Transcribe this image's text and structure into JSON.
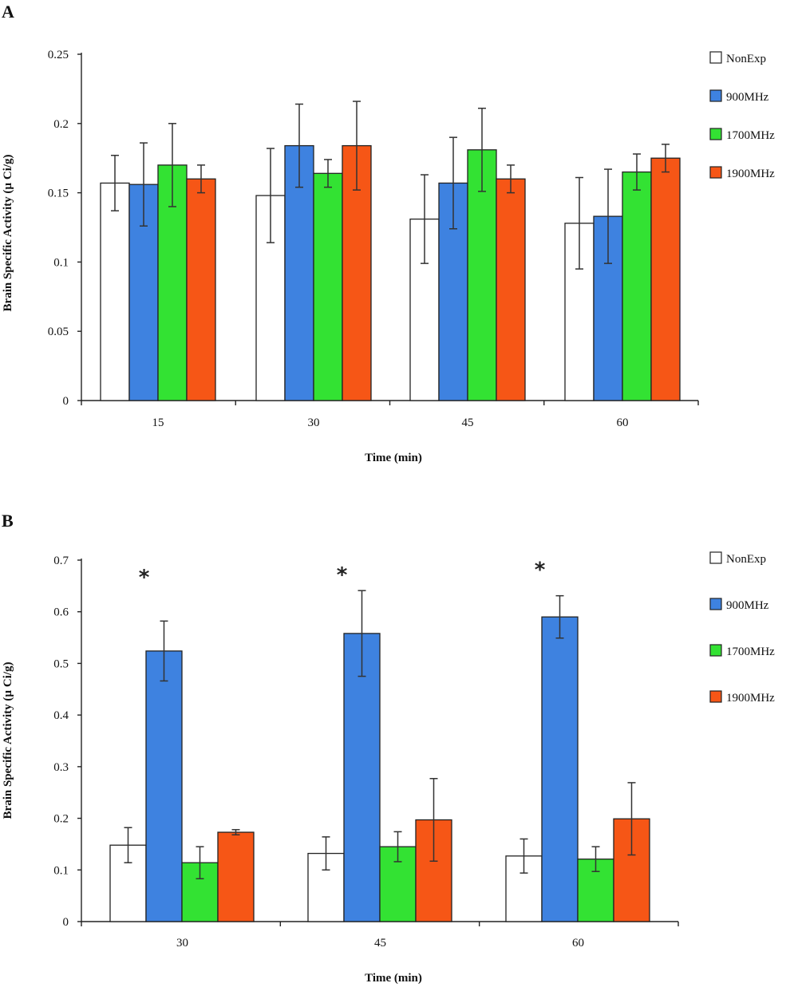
{
  "chart_data": [
    {
      "panel": "A",
      "type": "bar",
      "title": "",
      "xlabel": "Time (min)",
      "ylabel": "Brain Specific Activity (µ Ci/g)",
      "ylim": [
        0,
        0.25
      ],
      "yticks": [
        "0",
        "0.05",
        "0.1",
        "0.15",
        "0.2",
        "0.25"
      ],
      "categories": [
        "15",
        "30",
        "45",
        "60"
      ],
      "legend_position": "right",
      "grid": false,
      "series": [
        {
          "name": "NonExp",
          "color": "#ffffff",
          "values": [
            0.157,
            0.148,
            0.131,
            0.128
          ],
          "errors": [
            0.02,
            0.034,
            0.032,
            0.033
          ]
        },
        {
          "name": "900MHz",
          "color": "#3e82e0",
          "values": [
            0.156,
            0.184,
            0.157,
            0.133
          ],
          "errors": [
            0.03,
            0.03,
            0.033,
            0.034
          ]
        },
        {
          "name": "1700MHz",
          "color": "#33e233",
          "values": [
            0.17,
            0.164,
            0.181,
            0.165
          ],
          "errors": [
            0.03,
            0.01,
            0.03,
            0.013
          ]
        },
        {
          "name": "1900MHz",
          "color": "#f65616",
          "values": [
            0.16,
            0.184,
            0.16,
            0.175
          ],
          "errors": [
            0.01,
            0.032,
            0.01,
            0.01
          ]
        }
      ],
      "annotations": []
    },
    {
      "panel": "B",
      "type": "bar",
      "title": "",
      "xlabel": "Time (min)",
      "ylabel": "Brain Specific Activity (µ Ci/g)",
      "ylim": [
        0,
        0.7
      ],
      "yticks": [
        "0",
        "0.1",
        "0.2",
        "0.3",
        "0.4",
        "0.5",
        "0.6",
        "0.7"
      ],
      "categories": [
        "30",
        "45",
        "60"
      ],
      "legend_position": "right",
      "grid": false,
      "series": [
        {
          "name": "NonExp",
          "color": "#ffffff",
          "values": [
            0.148,
            0.132,
            0.127
          ],
          "errors": [
            0.034,
            0.032,
            0.033
          ]
        },
        {
          "name": "900MHz",
          "color": "#3e82e0",
          "values": [
            0.524,
            0.558,
            0.59
          ],
          "errors": [
            0.058,
            0.083,
            0.041
          ]
        },
        {
          "name": "1700MHz",
          "color": "#33e233",
          "values": [
            0.114,
            0.145,
            0.121
          ],
          "errors": [
            0.031,
            0.029,
            0.024
          ]
        },
        {
          "name": "1900MHz",
          "color": "#f65616",
          "values": [
            0.173,
            0.197,
            0.199
          ],
          "errors": [
            0.005,
            0.08,
            0.07
          ]
        }
      ],
      "annotations": [
        {
          "text": "*",
          "category": "30",
          "y": 0.675
        },
        {
          "text": "*",
          "category": "45",
          "y": 0.68
        },
        {
          "text": "*",
          "category": "60",
          "y": 0.69
        }
      ]
    }
  ]
}
